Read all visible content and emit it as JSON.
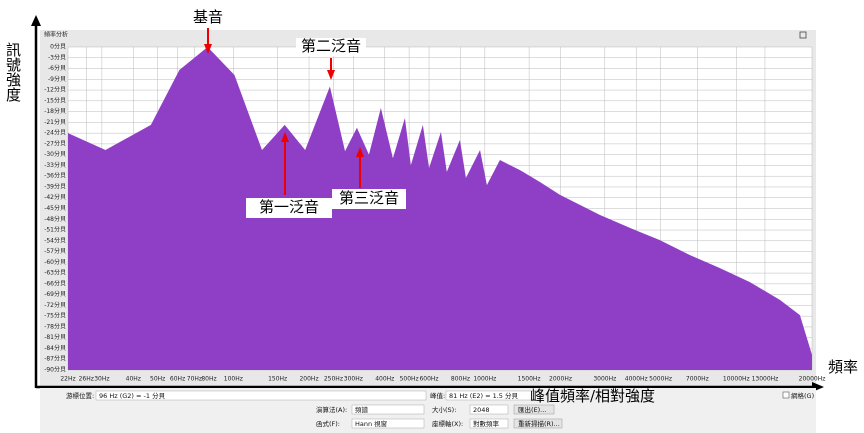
{
  "chart_data": {
    "type": "area",
    "window_title": "頻率分析",
    "y_label": "訊號強度",
    "x_label": "頻率",
    "peak_caption": "峰值頻率/相對強度",
    "annotations": [
      "基音",
      "第二泛音",
      "第一泛音",
      "第三泛音"
    ],
    "x": [
      22,
      31,
      47,
      61,
      79,
      101,
      130,
      160,
      193,
      242,
      278,
      310,
      346,
      386,
      431,
      481,
      508,
      567,
      600,
      669,
      706,
      796,
      841,
      957,
      1019,
      1148,
      1380,
      1656,
      1991,
      2388,
      2871,
      3776,
      4966,
      6546,
      8610,
      11324,
      14928,
      17906,
      20000
    ],
    "series": [
      {
        "name": "頻譜",
        "color": "#8e3fc6",
        "values": [
          -24,
          -28.7,
          -21.7,
          -6.4,
          0,
          -7.8,
          -28.7,
          -21.7,
          -28.7,
          -11,
          -29,
          -22.5,
          -30,
          -17,
          -31,
          -19.8,
          -32.9,
          -21.7,
          -33.7,
          -23.7,
          -34.8,
          -25.9,
          -36.5,
          -28.7,
          -38.5,
          -31.5,
          -34.3,
          -37.6,
          -41.2,
          -44,
          -46.8,
          -50.4,
          -53.8,
          -58,
          -61.6,
          -65.5,
          -70.5,
          -74.7,
          -85.8
        ]
      }
    ],
    "xlim": [
      22,
      20000
    ],
    "log_x": true,
    "ylim": [
      -90,
      0
    ],
    "grid": true,
    "xticks": [
      {
        "value": 22,
        "label": "22Hz"
      },
      {
        "value": 26,
        "label": "26Hz"
      },
      {
        "value": 30,
        "label": "30Hz"
      },
      {
        "value": 40,
        "label": "40Hz"
      },
      {
        "value": 50,
        "label": "50Hz"
      },
      {
        "value": 60,
        "label": "60Hz"
      },
      {
        "value": 70,
        "label": "70Hz"
      },
      {
        "value": 80,
        "label": "80Hz"
      },
      {
        "value": 100,
        "label": "100Hz"
      },
      {
        "value": 150,
        "label": "150Hz"
      },
      {
        "value": 200,
        "label": "200Hz"
      },
      {
        "value": 250,
        "label": "250Hz"
      },
      {
        "value": 300,
        "label": "300Hz"
      },
      {
        "value": 400,
        "label": "400Hz"
      },
      {
        "value": 500,
        "label": "500Hz"
      },
      {
        "value": 600,
        "label": "600Hz"
      },
      {
        "value": 800,
        "label": "800Hz"
      },
      {
        "value": 1000,
        "label": "1000Hz"
      },
      {
        "value": 1500,
        "label": "1500Hz"
      },
      {
        "value": 2000,
        "label": "2000Hz"
      },
      {
        "value": 3000,
        "label": "3000Hz"
      },
      {
        "value": 4000,
        "label": "4000Hz"
      },
      {
        "value": 5000,
        "label": "5000Hz"
      },
      {
        "value": 7000,
        "label": "7000Hz"
      },
      {
        "value": 10000,
        "label": "10000Hz"
      },
      {
        "value": 13000,
        "label": "13000Hz"
      },
      {
        "value": 20000,
        "label": "20000Hz"
      }
    ],
    "yticks": [
      {
        "value": 0,
        "label": "0分貝"
      },
      {
        "value": -3,
        "label": "-3分貝"
      },
      {
        "value": -6,
        "label": "-6分貝"
      },
      {
        "value": -9,
        "label": "-9分貝"
      },
      {
        "value": -12,
        "label": "-12分貝"
      },
      {
        "value": -15,
        "label": "-15分貝"
      },
      {
        "value": -18,
        "label": "-18分貝"
      },
      {
        "value": -21,
        "label": "-21分貝"
      },
      {
        "value": -24,
        "label": "-24分貝"
      },
      {
        "value": -27,
        "label": "-27分貝"
      },
      {
        "value": -30,
        "label": "-30分貝"
      },
      {
        "value": -33,
        "label": "-33分貝"
      },
      {
        "value": -36,
        "label": "-36分貝"
      },
      {
        "value": -39,
        "label": "-39分貝"
      },
      {
        "value": -42,
        "label": "-42分貝"
      },
      {
        "value": -45,
        "label": "-45分貝"
      },
      {
        "value": -48,
        "label": "-48分貝"
      },
      {
        "value": -51,
        "label": "-51分貝"
      },
      {
        "value": -54,
        "label": "-54分貝"
      },
      {
        "value": -57,
        "label": "-57分貝"
      },
      {
        "value": -60,
        "label": "-60分貝"
      },
      {
        "value": -63,
        "label": "-63分貝"
      },
      {
        "value": -66,
        "label": "-66分貝"
      },
      {
        "value": -69,
        "label": "-69分貝"
      },
      {
        "value": -72,
        "label": "-72分貝"
      },
      {
        "value": -75,
        "label": "-75分貝"
      },
      {
        "value": -78,
        "label": "-78分貝"
      },
      {
        "value": -81,
        "label": "-81分貝"
      },
      {
        "value": -84,
        "label": "-84分貝"
      },
      {
        "value": -87,
        "label": "-87分貝"
      },
      {
        "value": -90,
        "label": "-90分貝"
      }
    ]
  },
  "controls": {
    "cursor_label": "游標位置:",
    "cursor_value": "96 Hz (G2) = -1 分貝",
    "peak_label": "峰值:",
    "peak_value": "81 Hz (E2) = 1.5 分貝",
    "algorithm_label": "演算法(A):",
    "algorithm": "頻譜",
    "size_label": "大小(S):",
    "size": "2048",
    "export": "匯出(E)...",
    "function_label": "函式(F):",
    "function": "Hann 視窗",
    "axis_label": "座標軸(X):",
    "axis": "對數頻率",
    "rescan": "重新掃描(R)...",
    "grid": "網格(G)"
  }
}
